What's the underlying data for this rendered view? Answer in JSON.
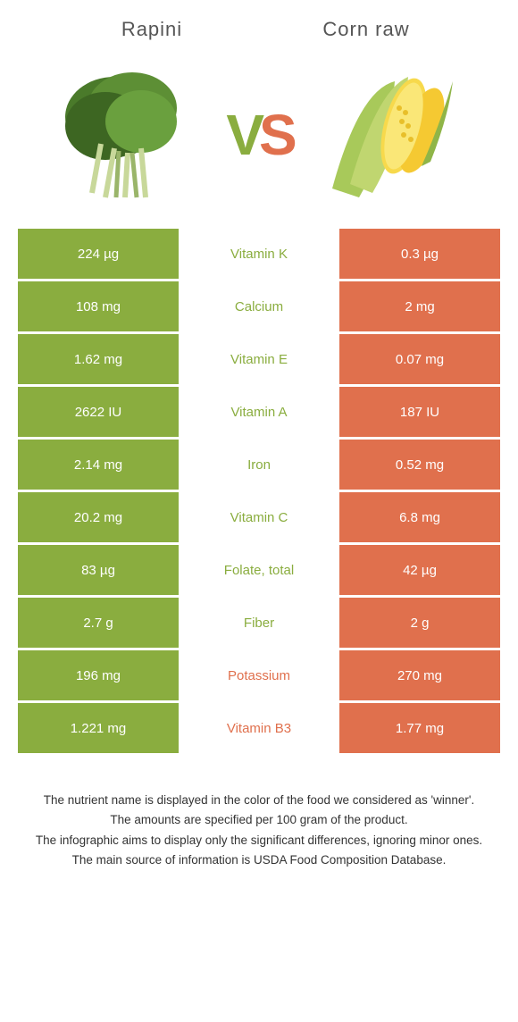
{
  "header": {
    "left": "Rapini",
    "right": "Corn raw"
  },
  "vs": {
    "v": "V",
    "s": "S"
  },
  "colors": {
    "green": "#8aad3f",
    "orange": "#e0704d",
    "white": "#ffffff"
  },
  "rows": [
    {
      "left": "224 µg",
      "label": "Vitamin K",
      "right": "0.3 µg",
      "winner": "left"
    },
    {
      "left": "108 mg",
      "label": "Calcium",
      "right": "2 mg",
      "winner": "left"
    },
    {
      "left": "1.62 mg",
      "label": "Vitamin E",
      "right": "0.07 mg",
      "winner": "left"
    },
    {
      "left": "2622 IU",
      "label": "Vitamin A",
      "right": "187 IU",
      "winner": "left"
    },
    {
      "left": "2.14 mg",
      "label": "Iron",
      "right": "0.52 mg",
      "winner": "left"
    },
    {
      "left": "20.2 mg",
      "label": "Vitamin C",
      "right": "6.8 mg",
      "winner": "left"
    },
    {
      "left": "83 µg",
      "label": "Folate, total",
      "right": "42 µg",
      "winner": "left"
    },
    {
      "left": "2.7 g",
      "label": "Fiber",
      "right": "2 g",
      "winner": "left"
    },
    {
      "left": "196 mg",
      "label": "Potassium",
      "right": "270 mg",
      "winner": "right"
    },
    {
      "left": "1.221 mg",
      "label": "Vitamin B3",
      "right": "1.77 mg",
      "winner": "right"
    }
  ],
  "footer": {
    "line1": "The nutrient name is displayed in the color of the food we considered as 'winner'.",
    "line2": "The amounts are specified per 100 gram of the product.",
    "line3": "The infographic aims to display only the significant differences, ignoring minor ones.",
    "line4": "The main source of information is USDA Food Composition Database."
  }
}
